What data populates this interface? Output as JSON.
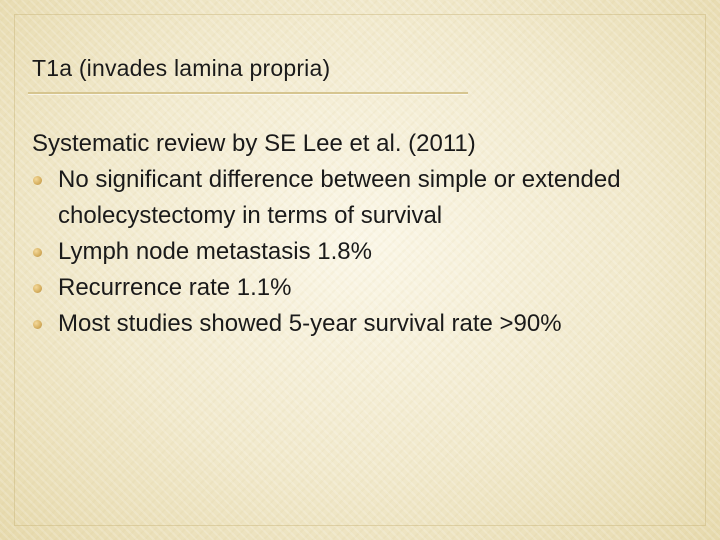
{
  "slide": {
    "title": "T1a (invades lamina propria)",
    "intro": "Systematic review by SE Lee et al. (2011)",
    "bullets": [
      "No significant difference between simple or extended cholecystectomy in terms of survival",
      "Lymph node metastasis 1.8%",
      "Recurrence rate 1.1%",
      "Most studies showed 5-year survival rate >90%"
    ]
  },
  "colors": {
    "background": "#f3ecd2",
    "text": "#1a1a1a",
    "title_rule": "#d6c58f",
    "bullet": "#d8b263"
  }
}
